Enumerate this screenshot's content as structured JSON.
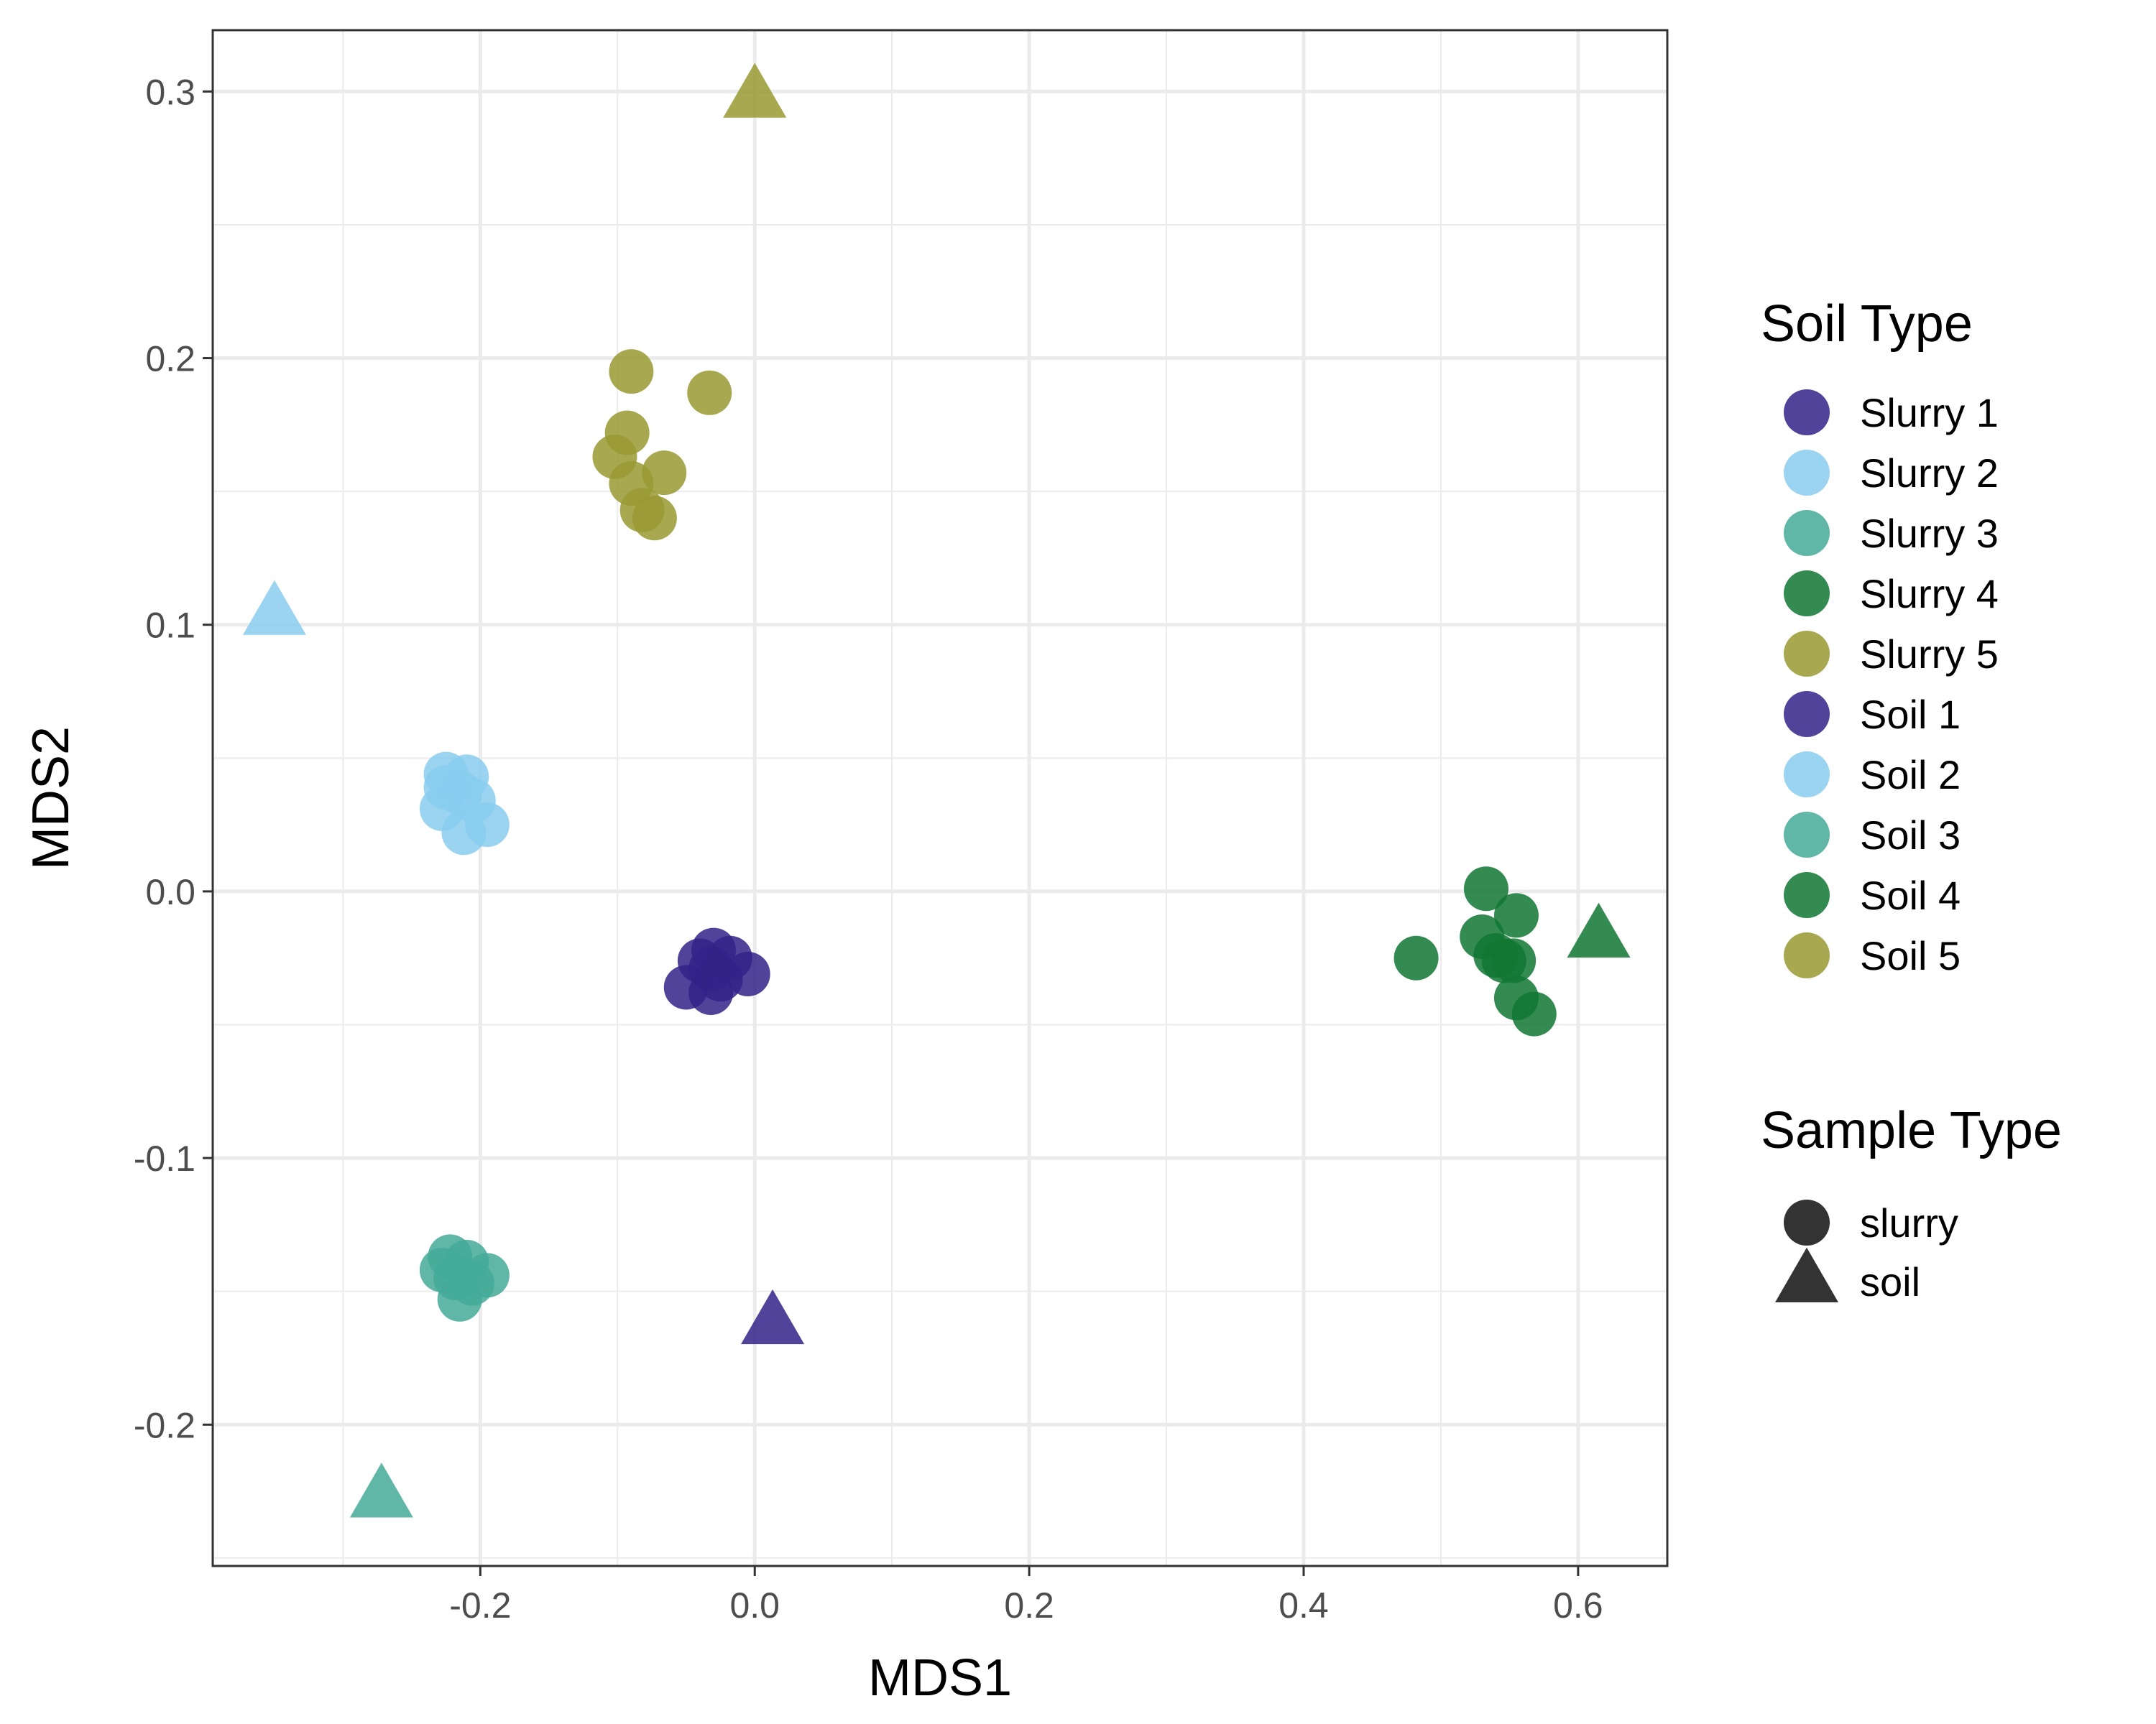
{
  "chart_data": {
    "type": "scatter",
    "title": "",
    "xlabel": "MDS1",
    "ylabel": "MDS2",
    "xlim": [
      -0.395,
      0.665
    ],
    "ylim": [
      -0.253,
      0.323
    ],
    "x_ticks": [
      -0.2,
      0.0,
      0.2,
      0.4,
      0.6
    ],
    "y_ticks": [
      -0.2,
      -0.1,
      0.0,
      0.1,
      0.2,
      0.3
    ],
    "x_tick_labels": [
      "-0.2",
      "0.0",
      "0.2",
      "0.4",
      "0.6"
    ],
    "y_tick_labels": [
      "-0.2",
      "-0.1",
      "0.0",
      "0.1",
      "0.2",
      "0.3"
    ],
    "grid": true,
    "legend_position": "right",
    "legend": {
      "color_title": "Soil Type",
      "shape_title": "Sample Type",
      "colors": [
        {
          "label": "Slurry 1",
          "color": "#332288"
        },
        {
          "label": "Slurry 2",
          "color": "#88CCEE"
        },
        {
          "label": "Slurry 3",
          "color": "#44AA99"
        },
        {
          "label": "Slurry 4",
          "color": "#117733"
        },
        {
          "label": "Slurry 5",
          "color": "#999933"
        },
        {
          "label": "Soil 1",
          "color": "#332288"
        },
        {
          "label": "Soil 2",
          "color": "#88CCEE"
        },
        {
          "label": "Soil 3",
          "color": "#44AA99"
        },
        {
          "label": "Soil 4",
          "color": "#117733"
        },
        {
          "label": "Soil 5",
          "color": "#999933"
        }
      ],
      "shapes": [
        {
          "label": "slurry",
          "shape": "circle"
        },
        {
          "label": "soil",
          "shape": "triangle"
        }
      ]
    },
    "series": [
      {
        "name": "Slurry 1",
        "shape": "circle",
        "color": "#332288",
        "points": [
          [
            -0.03,
            -0.022
          ],
          [
            -0.04,
            -0.026
          ],
          [
            -0.018,
            -0.025
          ],
          [
            -0.032,
            -0.029
          ],
          [
            -0.025,
            -0.033
          ],
          [
            -0.005,
            -0.031
          ],
          [
            -0.05,
            -0.036
          ],
          [
            -0.032,
            -0.038
          ]
        ]
      },
      {
        "name": "Slurry 2",
        "shape": "circle",
        "color": "#88CCEE",
        "points": [
          [
            -0.225,
            0.044
          ],
          [
            -0.21,
            0.043
          ],
          [
            -0.225,
            0.039
          ],
          [
            -0.215,
            0.037
          ],
          [
            -0.205,
            0.034
          ],
          [
            -0.228,
            0.031
          ],
          [
            -0.195,
            0.025
          ],
          [
            -0.212,
            0.022
          ]
        ]
      },
      {
        "name": "Slurry 3",
        "shape": "circle",
        "color": "#44AA99",
        "points": [
          [
            -0.222,
            -0.137
          ],
          [
            -0.21,
            -0.139
          ],
          [
            -0.228,
            -0.142
          ],
          [
            -0.218,
            -0.145
          ],
          [
            -0.195,
            -0.144
          ],
          [
            -0.206,
            -0.147
          ],
          [
            -0.215,
            -0.153
          ]
        ]
      },
      {
        "name": "Slurry 4",
        "shape": "circle",
        "color": "#117733",
        "points": [
          [
            0.533,
            0.001
          ],
          [
            0.555,
            -0.009
          ],
          [
            0.53,
            -0.017
          ],
          [
            0.482,
            -0.025
          ],
          [
            0.54,
            -0.024
          ],
          [
            0.553,
            -0.026
          ],
          [
            0.546,
            -0.026
          ],
          [
            0.555,
            -0.04
          ],
          [
            0.568,
            -0.046
          ]
        ]
      },
      {
        "name": "Slurry 5",
        "shape": "circle",
        "color": "#999933",
        "points": [
          [
            -0.09,
            0.195
          ],
          [
            -0.033,
            0.187
          ],
          [
            -0.093,
            0.172
          ],
          [
            -0.102,
            0.163
          ],
          [
            -0.066,
            0.157
          ],
          [
            -0.09,
            0.153
          ],
          [
            -0.082,
            0.143
          ],
          [
            -0.073,
            0.14
          ]
        ]
      },
      {
        "name": "Soil 1",
        "shape": "triangle",
        "color": "#332288",
        "points": [
          [
            0.013,
            -0.162
          ]
        ]
      },
      {
        "name": "Soil 2",
        "shape": "triangle",
        "color": "#88CCEE",
        "points": [
          [
            -0.35,
            0.104
          ]
        ]
      },
      {
        "name": "Soil 3",
        "shape": "triangle",
        "color": "#44AA99",
        "points": [
          [
            -0.272,
            -0.227
          ]
        ]
      },
      {
        "name": "Soil 4",
        "shape": "triangle",
        "color": "#117733",
        "points": [
          [
            0.615,
            -0.017
          ]
        ]
      },
      {
        "name": "Soil 5",
        "shape": "triangle",
        "color": "#999933",
        "points": [
          [
            0.0,
            0.298
          ]
        ]
      }
    ]
  }
}
